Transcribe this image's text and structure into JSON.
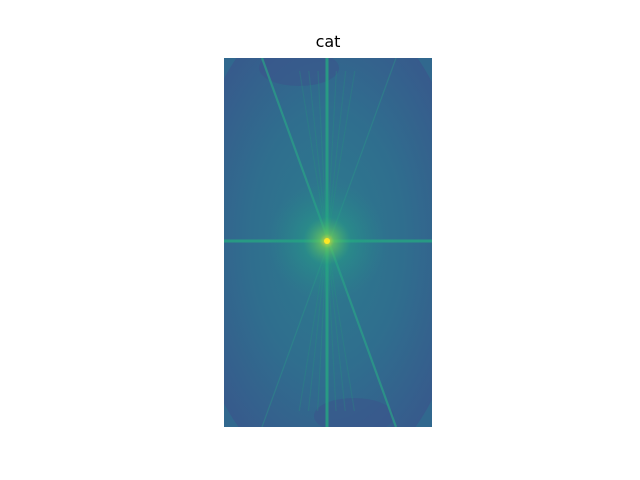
{
  "chart_data": {
    "type": "heatmap",
    "title": "cat",
    "xlabel": "",
    "ylabel": "",
    "axes_visible": false,
    "colormap": "viridis",
    "colors": {
      "low": "#3b528b",
      "mid": "#21918c",
      "high": "#fde725"
    },
    "features": {
      "bright_center": true,
      "horizontal_line": true,
      "vertical_line": true,
      "diagonal_streaks": true
    }
  }
}
